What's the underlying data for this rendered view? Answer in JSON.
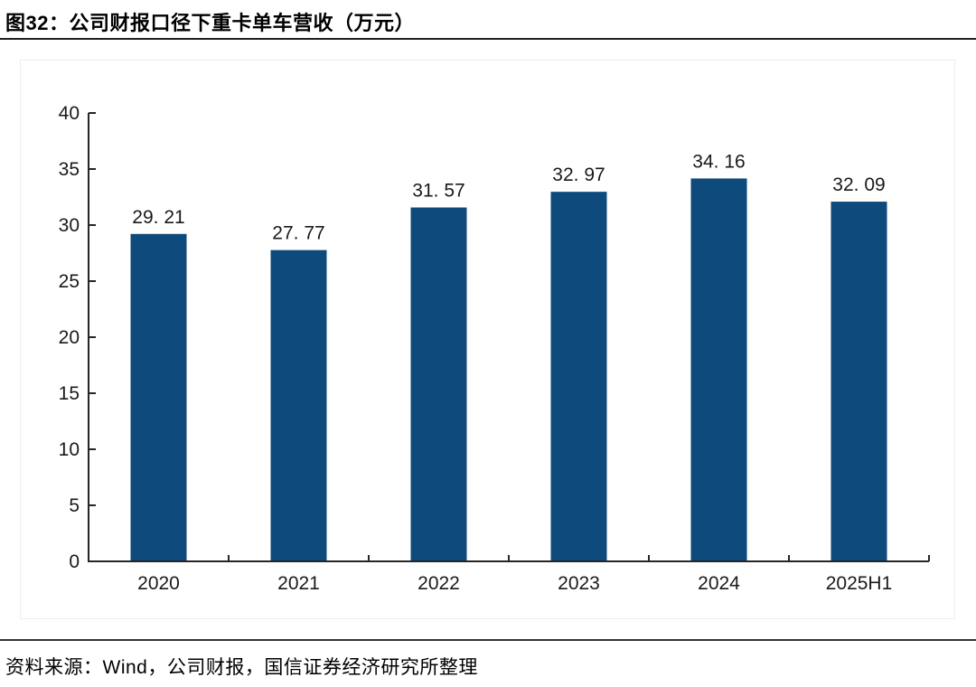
{
  "page": {
    "title": "图32：公司财报口径下重卡单车营收（万元）",
    "source": "资料来源：Wind，公司财报，国信证券经济研究所整理"
  },
  "chart_data": {
    "type": "bar",
    "title": "图32：公司财报口径下重卡单车营收（万元）",
    "categories": [
      "2020",
      "2021",
      "2022",
      "2023",
      "2024",
      "2025H1"
    ],
    "values": [
      29.21,
      27.77,
      31.57,
      32.97,
      34.16,
      32.09
    ],
    "value_labels": [
      "29. 21",
      "27. 77",
      "31. 57",
      "32. 97",
      "34. 16",
      "32. 09"
    ],
    "xlabel": "",
    "ylabel": "",
    "ylim": [
      0,
      40
    ],
    "yticks": [
      0,
      5,
      10,
      15,
      20,
      25,
      30,
      35,
      40
    ],
    "grid": false,
    "legend": "none",
    "bar_color": "#0e4a7b",
    "axis_color": "#262626",
    "text_color": "#1a1a1a"
  }
}
